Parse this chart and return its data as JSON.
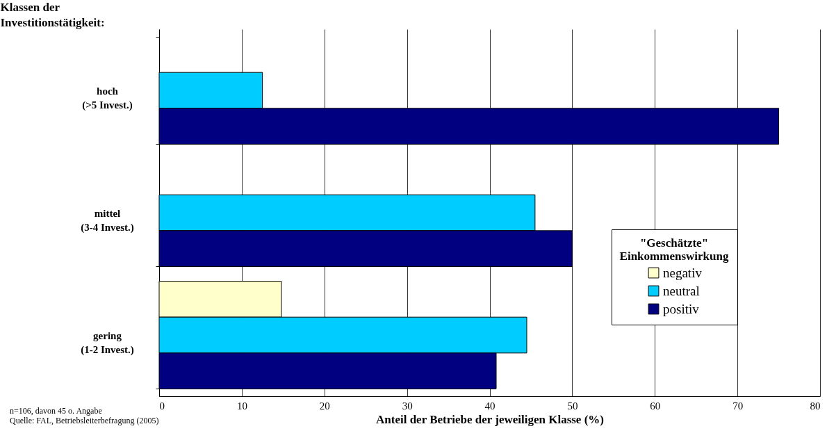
{
  "chart_data": {
    "type": "bar",
    "orientation": "horizontal",
    "ylabel": "Klassen der\nInvestitionstätigkeit:",
    "xlabel": "Anteil der Betriebe der jeweiligen Klasse (%)",
    "legend_title": "\"Geschätzte\"\nEinkommenswirkung",
    "categories": [
      "hoch\n(>5 Invest.)",
      "mittel\n(3-4 Invest.)",
      "gering\n(1-2 Invest.)"
    ],
    "series": [
      {
        "name": "negativ",
        "color": "#ffffcc",
        "values": [
          null,
          null,
          14.8
        ]
      },
      {
        "name": "neutral",
        "color": "#00ccff",
        "values": [
          12.5,
          45.5,
          44.5
        ]
      },
      {
        "name": "positiv",
        "color": "#000080",
        "values": [
          75,
          50,
          40.8
        ]
      }
    ],
    "xlim": [
      0,
      80
    ],
    "xticks": [
      0,
      10,
      20,
      30,
      40,
      50,
      60,
      70,
      80
    ],
    "grid": "x",
    "legend": "bottom right",
    "annotations": [
      "n=106, davon 45 o. Angabe",
      "Quelle: FAL, Betriebsleiterbefragung (2005)"
    ]
  }
}
